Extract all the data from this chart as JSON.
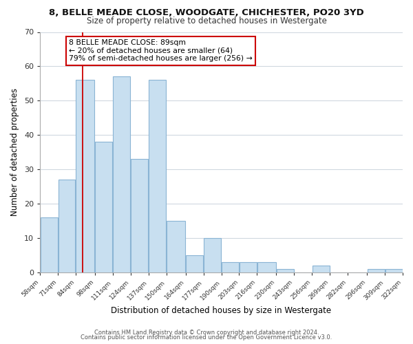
{
  "title": "8, BELLE MEADE CLOSE, WOODGATE, CHICHESTER, PO20 3YD",
  "subtitle": "Size of property relative to detached houses in Westergate",
  "xlabel": "Distribution of detached houses by size in Westergate",
  "ylabel": "Number of detached properties",
  "footer_line1": "Contains HM Land Registry data © Crown copyright and database right 2024.",
  "footer_line2": "Contains public sector information licensed under the Open Government Licence v3.0.",
  "bar_left_edges": [
    58,
    71,
    84,
    98,
    111,
    124,
    137,
    150,
    164,
    177,
    190,
    203,
    216,
    230,
    243,
    256,
    269,
    282,
    296,
    309
  ],
  "bar_widths": [
    13,
    13,
    14,
    13,
    13,
    13,
    13,
    14,
    13,
    13,
    13,
    13,
    14,
    13,
    13,
    13,
    13,
    14,
    13,
    13
  ],
  "bar_heights": [
    16,
    27,
    56,
    38,
    57,
    33,
    56,
    15,
    5,
    10,
    3,
    3,
    3,
    1,
    0,
    2,
    0,
    0,
    1,
    1
  ],
  "bar_color": "#c8dff0",
  "bar_edge_color": "#8ab4d4",
  "highlight_x": 89,
  "highlight_color": "#cc0000",
  "annotation_text_line1": "8 BELLE MEADE CLOSE: 89sqm",
  "annotation_text_line2": "← 20% of detached houses are smaller (64)",
  "annotation_text_line3": "79% of semi-detached houses are larger (256) →",
  "tick_labels": [
    "58sqm",
    "71sqm",
    "84sqm",
    "98sqm",
    "111sqm",
    "124sqm",
    "137sqm",
    "150sqm",
    "164sqm",
    "177sqm",
    "190sqm",
    "203sqm",
    "216sqm",
    "230sqm",
    "243sqm",
    "256sqm",
    "269sqm",
    "282sqm",
    "296sqm",
    "309sqm",
    "322sqm"
  ],
  "ylim": [
    0,
    70
  ],
  "xlim": [
    58,
    322
  ],
  "yticks": [
    0,
    10,
    20,
    30,
    40,
    50,
    60,
    70
  ],
  "background_color": "#ffffff",
  "grid_color": "#d0d8e0"
}
